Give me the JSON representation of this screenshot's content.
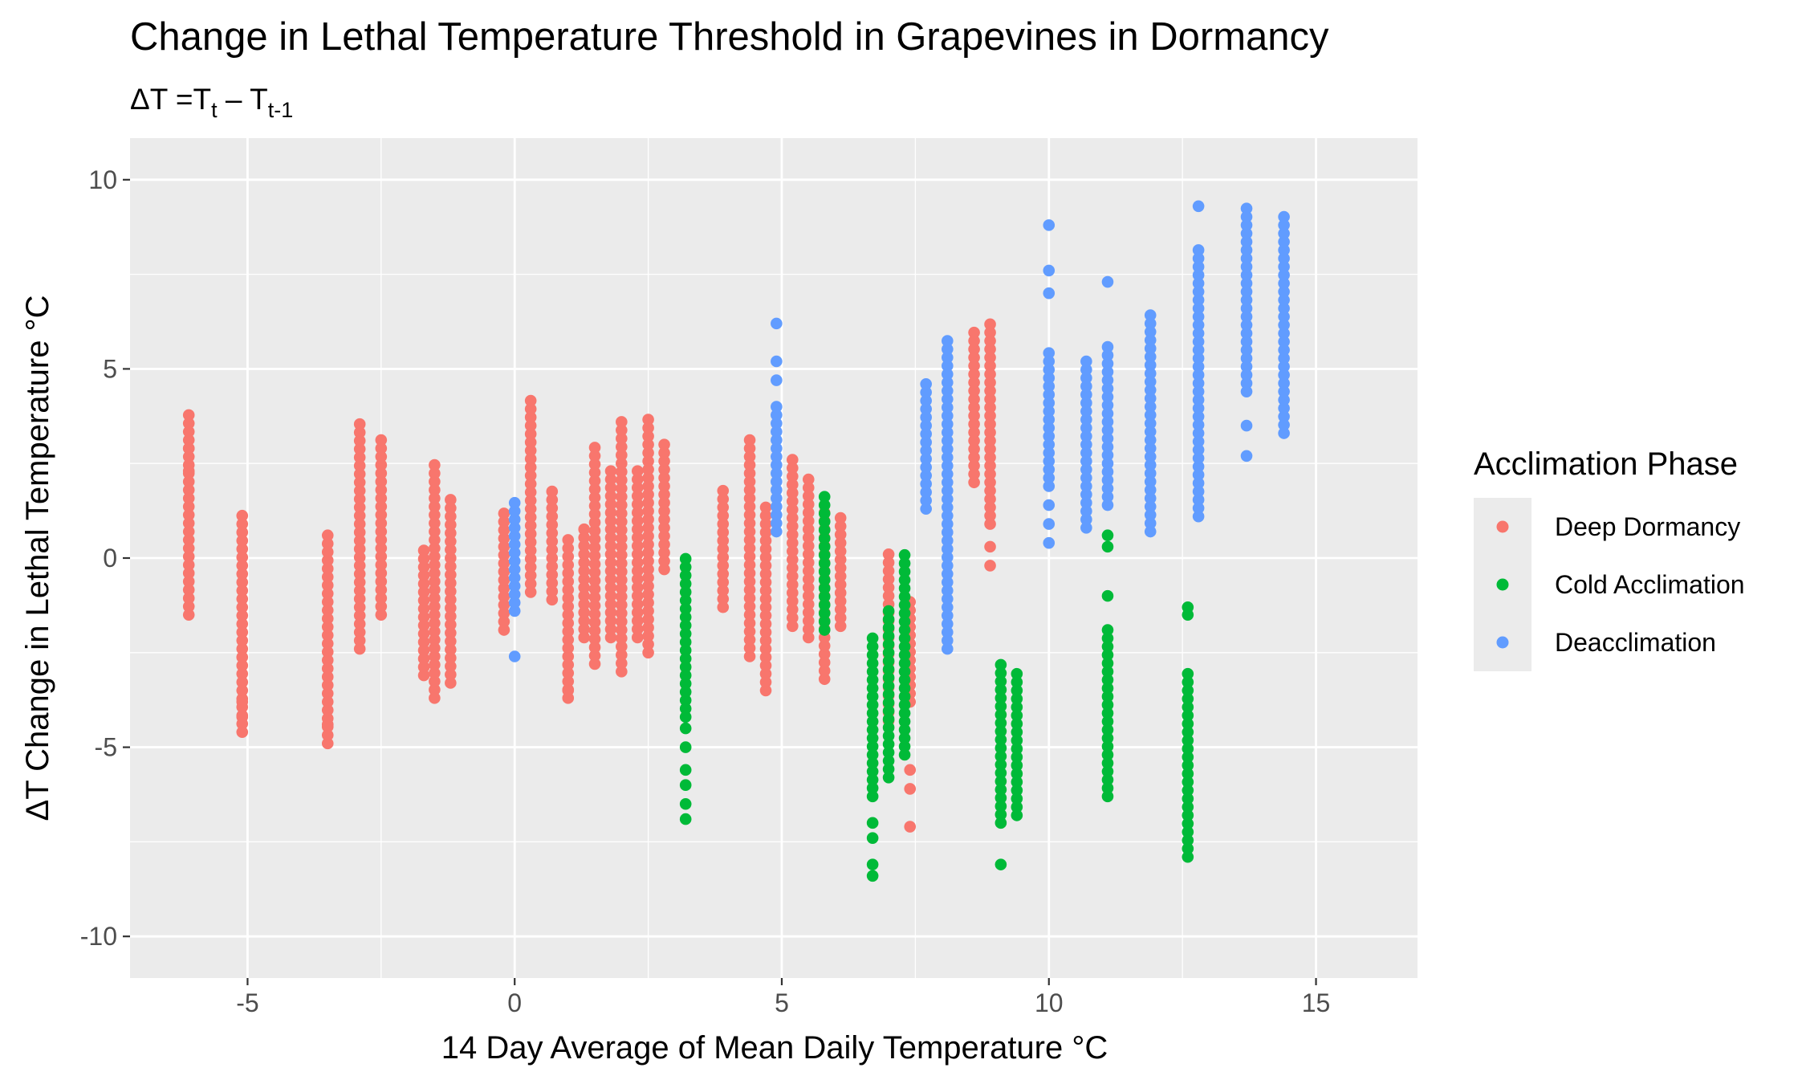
{
  "chart_data": {
    "type": "scatter",
    "title": "Change in Lethal Temperature Threshold in Grapevines in Dormancy",
    "subtitle": {
      "prefix": "ΔT =T",
      "sub1": "t",
      "mid": " – T",
      "sub2": "t-1"
    },
    "xlabel": "14 Day Average of Mean Daily Temperature °C",
    "ylabel": "ΔT Change in Lethal Temperature °C",
    "xlim": [
      -7.2,
      16.9
    ],
    "ylim": [
      -11.1,
      11.1
    ],
    "x_ticks": [
      -5,
      0,
      5,
      10,
      15
    ],
    "y_ticks": [
      -10,
      -5,
      0,
      5,
      10
    ],
    "grid": true,
    "legend": {
      "title": "Acclimation Phase",
      "position": "right"
    },
    "series": [
      {
        "name": "Deep Dormancy",
        "color": "#F8766D",
        "columns": [
          {
            "x": -6.1,
            "ymin": -1.5,
            "ymax": 3.9,
            "pts": [
              2.9,
              2.3
            ]
          },
          {
            "x": -5.1,
            "ymin": -4.6,
            "ymax": 1.2,
            "pts": [
              -3.8,
              -4.2
            ]
          },
          {
            "x": -3.5,
            "ymin": -4.9,
            "ymax": 0.7,
            "pts": [
              -4.4
            ]
          },
          {
            "x": -2.9,
            "ymin": -2.4,
            "ymax": 3.7,
            "pts": []
          },
          {
            "x": -2.5,
            "ymin": -1.5,
            "ymax": 3.2,
            "pts": []
          },
          {
            "x": -1.7,
            "ymin": -3.1,
            "ymax": 0.2,
            "pts": []
          },
          {
            "x": -1.5,
            "ymin": -3.7,
            "ymax": 2.5,
            "pts": []
          },
          {
            "x": -1.2,
            "ymin": -3.3,
            "ymax": 1.6,
            "pts": []
          },
          {
            "x": -0.2,
            "ymin": -1.9,
            "ymax": 1.2,
            "pts": []
          },
          {
            "x": 0.3,
            "ymin": -0.9,
            "ymax": 4.3,
            "pts": []
          },
          {
            "x": 0.7,
            "ymin": -1.1,
            "ymax": 1.8,
            "pts": []
          },
          {
            "x": 1.0,
            "ymin": -3.7,
            "ymax": 0.6,
            "pts": [
              -3.5
            ]
          },
          {
            "x": 1.3,
            "ymin": -2.1,
            "ymax": 0.9,
            "pts": []
          },
          {
            "x": 1.5,
            "ymin": -2.8,
            "ymax": 3.1,
            "pts": []
          },
          {
            "x": 1.8,
            "ymin": -2.1,
            "ymax": 2.5,
            "pts": []
          },
          {
            "x": 2.0,
            "ymin": -3.0,
            "ymax": 3.8,
            "pts": []
          },
          {
            "x": 2.3,
            "ymin": -2.1,
            "ymax": 2.5,
            "pts": []
          },
          {
            "x": 2.5,
            "ymin": -2.5,
            "ymax": 3.7,
            "pts": []
          },
          {
            "x": 2.8,
            "ymin": -0.3,
            "ymax": 3.0,
            "pts": []
          },
          {
            "x": 3.9,
            "ymin": -1.3,
            "ymax": 1.9,
            "pts": []
          },
          {
            "x": 4.4,
            "ymin": -2.6,
            "ymax": 3.3,
            "pts": []
          },
          {
            "x": 4.7,
            "ymin": -3.5,
            "ymax": 1.4,
            "pts": []
          },
          {
            "x": 5.2,
            "ymin": -1.8,
            "ymax": 2.6,
            "pts": []
          },
          {
            "x": 5.5,
            "ymin": -2.1,
            "ymax": 2.1,
            "pts": []
          },
          {
            "x": 5.8,
            "ymin": -3.2,
            "ymax": 1.3,
            "pts": []
          },
          {
            "x": 6.1,
            "ymin": -1.8,
            "ymax": 1.2,
            "pts": []
          },
          {
            "x": 7.0,
            "ymin": -4.3,
            "ymax": 0.1,
            "pts": []
          },
          {
            "x": 7.4,
            "ymin": -3.8,
            "ymax": -1.0,
            "pts": [
              -5.6,
              -6.1,
              -7.1
            ]
          },
          {
            "x": 8.6,
            "ymin": 2.0,
            "ymax": 6.0,
            "pts": []
          },
          {
            "x": 8.9,
            "ymin": 0.9,
            "ymax": 6.3,
            "pts": [
              -0.2,
              0.3
            ]
          }
        ]
      },
      {
        "name": "Cold Acclimation",
        "color": "#00BA38",
        "columns": [
          {
            "x": 3.2,
            "ymin": -4.2,
            "ymax": 0.1,
            "pts": [
              -4.5,
              -5.0,
              -5.6,
              -6.0,
              -6.5,
              -6.9
            ]
          },
          {
            "x": 5.8,
            "ymin": -1.9,
            "ymax": 1.8,
            "pts": []
          },
          {
            "x": 6.7,
            "ymin": -6.3,
            "ymax": -2.1,
            "pts": [
              -7.0,
              -7.4,
              -8.1,
              -8.4
            ]
          },
          {
            "x": 7.0,
            "ymin": -5.8,
            "ymax": -1.3,
            "pts": []
          },
          {
            "x": 7.3,
            "ymin": -5.2,
            "ymax": 0.2,
            "pts": []
          },
          {
            "x": 9.1,
            "ymin": -7.0,
            "ymax": -2.7,
            "pts": [
              -8.1
            ]
          },
          {
            "x": 9.4,
            "ymin": -6.8,
            "ymax": -3.0,
            "pts": []
          },
          {
            "x": 11.1,
            "ymin": -6.3,
            "ymax": -1.9,
            "pts": [
              -1.0,
              0.3,
              0.6
            ]
          },
          {
            "x": 12.6,
            "ymin": -7.9,
            "ymax": -2.9,
            "pts": [
              -1.3,
              -1.5
            ]
          }
        ]
      },
      {
        "name": "Deacclimation",
        "color": "#619CFF",
        "columns": [
          {
            "x": 0.0,
            "ymin": -1.4,
            "ymax": 1.5,
            "pts": [
              -2.6
            ]
          },
          {
            "x": 4.9,
            "ymin": 0.7,
            "ymax": 4.2,
            "pts": [
              4.7,
              5.2,
              6.2
            ]
          },
          {
            "x": 7.7,
            "ymin": 1.3,
            "ymax": 4.6,
            "pts": []
          },
          {
            "x": 8.1,
            "ymin": -2.4,
            "ymax": 5.8,
            "pts": []
          },
          {
            "x": 10.0,
            "ymin": 1.9,
            "ymax": 5.6,
            "pts": [
              8.8,
              7.6,
              7.0,
              0.4,
              0.9,
              1.4
            ]
          },
          {
            "x": 10.7,
            "ymin": 0.8,
            "ymax": 5.4,
            "pts": []
          },
          {
            "x": 11.1,
            "ymin": 1.4,
            "ymax": 5.7,
            "pts": [
              7.3
            ]
          },
          {
            "x": 11.9,
            "ymin": 0.7,
            "ymax": 6.5,
            "pts": []
          },
          {
            "x": 12.8,
            "ymin": 1.1,
            "ymax": 8.3,
            "pts": [
              9.3
            ]
          },
          {
            "x": 13.7,
            "ymin": 4.4,
            "ymax": 9.3,
            "pts": [
              2.7,
              3.5
            ]
          },
          {
            "x": 14.4,
            "ymin": 3.3,
            "ymax": 9.1,
            "pts": []
          }
        ]
      }
    ]
  }
}
